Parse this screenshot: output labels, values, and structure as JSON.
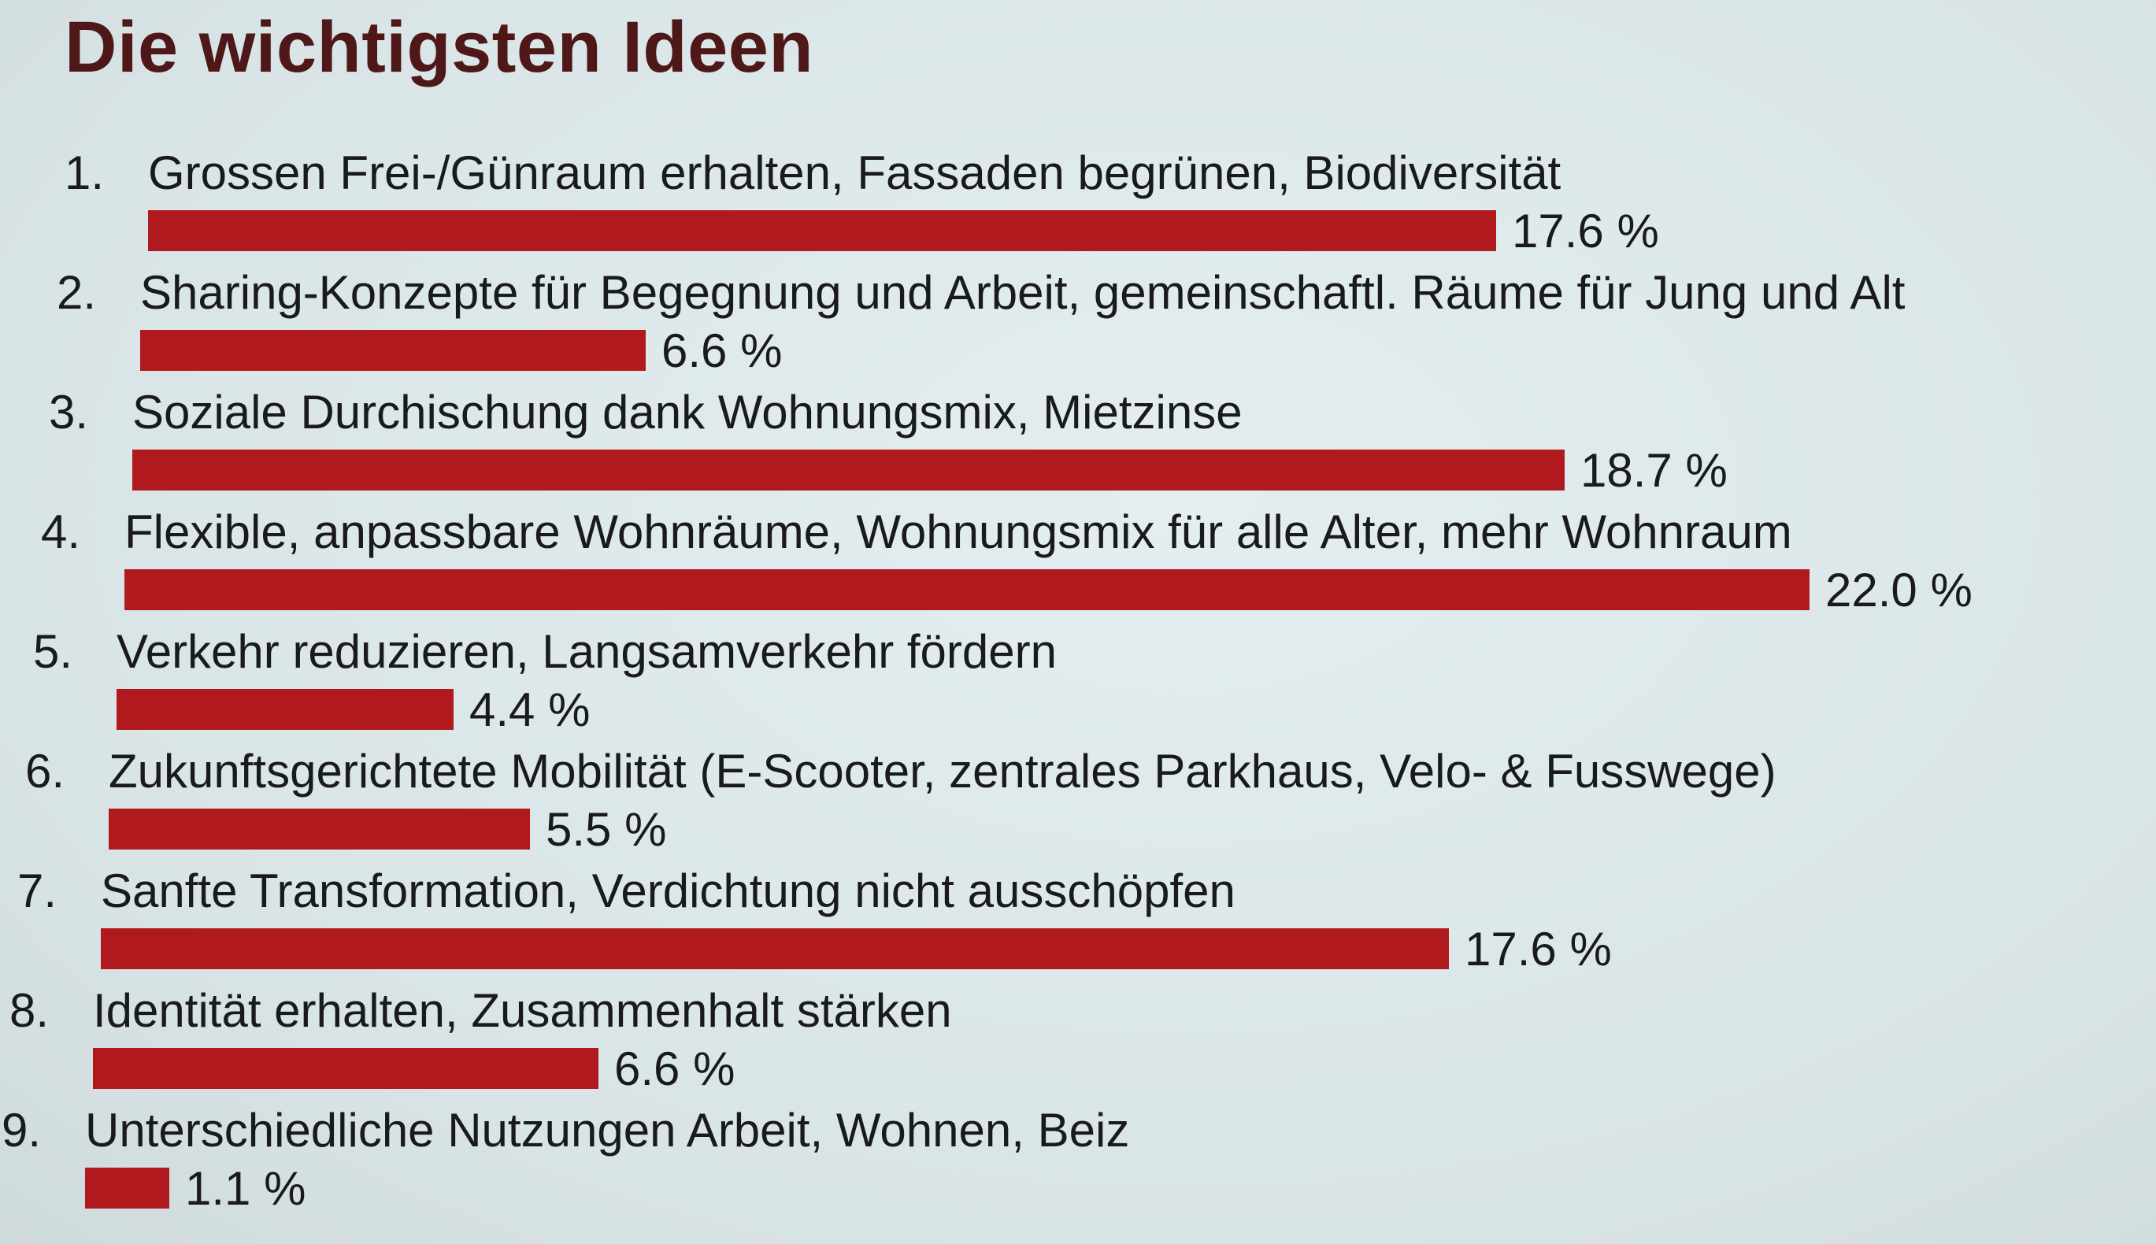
{
  "chart_data": {
    "type": "bar",
    "orientation": "horizontal",
    "title": "Die wichtigsten Ideen",
    "categories": [
      "Grossen Frei-/Günraum erhalten, Fassaden begrünen, Biodiversität",
      "Sharing-Konzepte für Begegnung und Arbeit, gemeinschaftl. Räume für Jung und Alt",
      "Soziale Durchischung dank Wohnungsmix, Mietzinse",
      "Flexible, anpassbare Wohnräume, Wohnungsmix für alle Alter, mehr Wohnraum",
      "Verkehr reduzieren, Langsamverkehr fördern",
      "Zukunftsgerichtete Mobilität (E-Scooter, zentrales Parkhaus, Velo- & Fusswege)",
      "Sanfte Transformation, Verdichtung nicht ausschöpfen",
      "Identität erhalten, Zusammenhalt stärken",
      "Unterschiedliche Nutzungen Arbeit, Wohnen, Beiz"
    ],
    "numbers": [
      "1.",
      "2.",
      "3.",
      "4.",
      "5.",
      "6.",
      "7.",
      "8.",
      "9."
    ],
    "values": [
      17.6,
      6.6,
      18.7,
      22.0,
      4.4,
      5.5,
      17.6,
      6.6,
      1.1
    ],
    "value_labels": [
      "17.6 %",
      "6.6 %",
      "18.7 %",
      "22.0 %",
      "4.4 %",
      "5.5 %",
      "17.6 %",
      "6.6 %",
      "1.1 %"
    ],
    "xlim": [
      0,
      22.0
    ],
    "grid": false,
    "legend": "none",
    "bar_color": "#b01a1e"
  }
}
